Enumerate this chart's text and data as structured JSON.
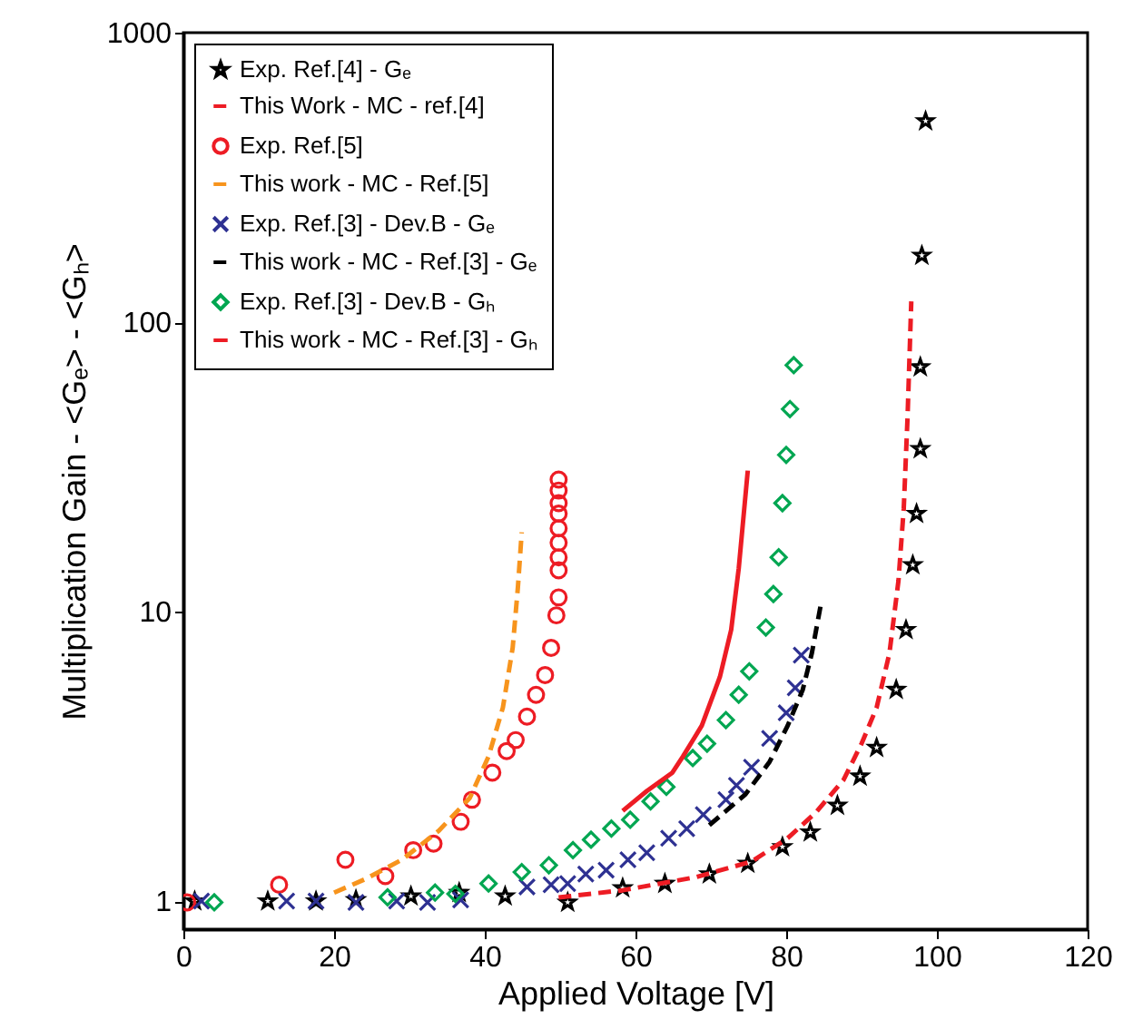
{
  "chart_data": {
    "type": "scatter",
    "xlabel": "Applied Voltage [V]",
    "ylabel": "Multiplication Gain - <Gₑ> - <Gₕ>",
    "xlim": [
      0,
      120
    ],
    "xticks": [
      0,
      20,
      40,
      60,
      80,
      100,
      120
    ],
    "ylim": [
      0.8,
      1000
    ],
    "yticks": [
      1,
      10,
      100,
      1000
    ],
    "log": "y",
    "grid": false,
    "legend": "top left",
    "series": [
      {
        "name": "Exp. Ref.[4] - Gₑ",
        "type": "scatter",
        "marker": "star",
        "color": "#000000",
        "x": [
          1.5,
          11.2,
          17.6,
          22.9,
          30.2,
          36.6,
          42.7,
          51,
          58.3,
          63.9,
          69.8,
          74.9,
          79.5,
          83.2,
          86.8,
          89.8,
          92,
          94.6,
          95.9,
          96.8,
          97.3,
          97.8,
          97.8,
          98,
          98.5
        ],
        "values": [
          1,
          1,
          1,
          1.01,
          1.04,
          1.07,
          1.04,
          0.99,
          1.11,
          1.15,
          1.24,
          1.35,
          1.54,
          1.73,
          2.14,
          2.7,
          3.39,
          5.38,
          8.66,
          14.5,
          21.8,
          36.5,
          70,
          170,
          495
        ]
      },
      {
        "name": "This Work - MC - ref.[4]",
        "type": "line",
        "line_style": "dashed",
        "color": "#ed1c24",
        "x": [
          49.8,
          58.3,
          68,
          75.4,
          80.2,
          83.9,
          87.6,
          90,
          92,
          93.7,
          94.9,
          95.6,
          96.1,
          96.6
        ],
        "values": [
          1.03,
          1.09,
          1.21,
          1.37,
          1.65,
          2.02,
          2.62,
          3.5,
          4.66,
          7.18,
          12.8,
          22.7,
          46.6,
          118
        ]
      },
      {
        "name": "Exp. Ref.[5]",
        "type": "scatter",
        "marker": "circle",
        "color": "#ed1c24",
        "x": [
          0.5,
          12.7,
          21.5,
          26.8,
          30.5,
          33.2,
          36.8,
          38.3,
          41,
          42.9,
          44.1,
          45.6,
          46.8,
          48,
          48.8,
          49.5,
          49.8,
          49.8,
          49.8,
          49.8,
          49.8,
          49.8,
          49.8,
          49.8,
          49.8
        ],
        "values": [
          0.99,
          1.14,
          1.39,
          1.22,
          1.5,
          1.58,
          1.88,
          2.24,
          2.78,
          3.3,
          3.6,
          4.34,
          5.16,
          6.04,
          7.5,
          9.71,
          11.2,
          13.9,
          15.4,
          17.3,
          19.4,
          21.8,
          23.7,
          26.2,
          28.6
        ]
      },
      {
        "name": "This work - MC - Ref.[5]",
        "type": "line",
        "line_style": "dashed",
        "color": "#f7941d",
        "x": [
          20,
          24.1,
          29,
          33.9,
          38,
          40.5,
          42.4,
          43.7,
          44.4,
          44.9
        ],
        "values": [
          1.07,
          1.19,
          1.39,
          1.75,
          2.27,
          3.16,
          4.66,
          7.5,
          12.2,
          18.8
        ]
      },
      {
        "name": "Exp. Ref.[3] - Dev.B - Gₑ",
        "type": "scatter",
        "marker": "cross",
        "color": "#2e3192",
        "x": [
          2.4,
          13.7,
          17.6,
          22.9,
          28.3,
          32.4,
          36.8,
          45.6,
          48.8,
          51,
          53.4,
          56.1,
          59,
          61.5,
          64.4,
          66.8,
          69,
          72,
          73.4,
          75.4,
          77.8,
          80,
          81.2,
          82
        ],
        "values": [
          1,
          1,
          1,
          0.99,
          1,
          0.99,
          1.01,
          1.12,
          1.14,
          1.15,
          1.24,
          1.28,
          1.39,
          1.47,
          1.65,
          1.78,
          1.99,
          2.24,
          2.51,
          2.9,
          3.65,
          4.47,
          5.46,
          7.07
        ]
      },
      {
        "name": "This work - MC - Ref.[3] - Gₑ",
        "type": "line",
        "line_style": "dashed",
        "color": "#000000",
        "x": [
          69.8,
          74.6,
          77.8,
          80.2,
          82.2,
          83.4,
          84.6
        ],
        "values": [
          1.83,
          2.34,
          3.03,
          4.04,
          5.38,
          7.18,
          10.6
        ]
      },
      {
        "name": "Exp. Ref.[3] - Dev.B - Gₕ",
        "type": "scatter",
        "marker": "diamond",
        "color": "#00a651",
        "x": [
          4.1,
          27.1,
          33.4,
          36.1,
          40.5,
          44.9,
          48.5,
          51.7,
          54.1,
          56.8,
          59.3,
          62,
          64.1,
          67.6,
          69.5,
          72,
          73.7,
          75.1,
          77.3,
          78.3,
          79,
          79.5,
          80,
          80.5,
          81
        ],
        "values": [
          0.99,
          1.03,
          1.07,
          1.06,
          1.15,
          1.26,
          1.33,
          1.5,
          1.63,
          1.78,
          1.91,
          2.21,
          2.48,
          3.12,
          3.5,
          4.22,
          5.16,
          6.22,
          8.81,
          11.5,
          15.4,
          23.7,
          34.8,
          50.1,
          71
        ]
      },
      {
        "name": "This work - MC - Ref.[3] - Gₕ",
        "type": "line",
        "line_style": "solid",
        "color": "#ed1c24",
        "x": [
          58.3,
          61.5,
          64.9,
          66.3,
          68.8,
          71.2,
          72.7,
          73.7,
          74.9
        ],
        "values": [
          2.05,
          2.4,
          2.78,
          3.16,
          4.04,
          5.95,
          8.66,
          14.1,
          30.7
        ]
      }
    ]
  }
}
